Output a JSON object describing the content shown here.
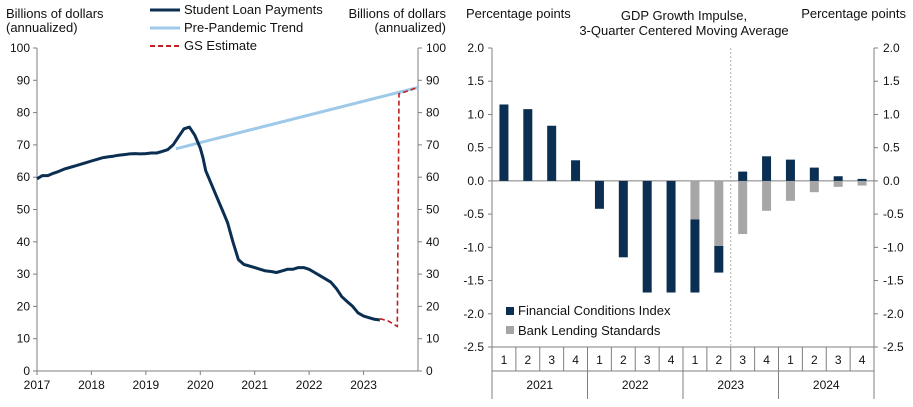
{
  "colors": {
    "navy": "#0b2f52",
    "light_blue": "#9fc9e8",
    "red_dash": "#c0201f",
    "gray": "#a6a6a6",
    "axis": "#7f7f7f",
    "divider": "#b0b0b0"
  },
  "chart_data": [
    {
      "type": "line",
      "left_axis_title": [
        "Billions of dollars",
        "(annualized)"
      ],
      "right_axis_title": [
        "Billions of dollars",
        "(annualized)"
      ],
      "ylim": [
        0,
        100
      ],
      "yticks": [
        0,
        10,
        20,
        30,
        40,
        50,
        60,
        70,
        80,
        90,
        100
      ],
      "xlim": [
        2017,
        2024
      ],
      "xticks": [
        2017,
        2018,
        2019,
        2020,
        2021,
        2022,
        2023
      ],
      "legend": [
        "Student Loan Payments",
        "Pre-Pandemic Trend",
        "GS Estimate"
      ],
      "legend_position": "top",
      "series": [
        {
          "name": "Student Loan Payments",
          "x": [
            2017.0,
            2017.1,
            2017.2,
            2017.3,
            2017.4,
            2017.5,
            2017.6,
            2017.7,
            2017.8,
            2017.9,
            2018.0,
            2018.1,
            2018.2,
            2018.3,
            2018.4,
            2018.5,
            2018.6,
            2018.7,
            2018.8,
            2018.9,
            2019.0,
            2019.1,
            2019.2,
            2019.3,
            2019.4,
            2019.5,
            2019.6,
            2019.7,
            2019.8,
            2019.9,
            2020.0,
            2020.05,
            2020.1,
            2020.2,
            2020.3,
            2020.4,
            2020.5,
            2020.6,
            2020.7,
            2020.8,
            2020.9,
            2021.0,
            2021.1,
            2021.2,
            2021.3,
            2021.4,
            2021.5,
            2021.6,
            2021.7,
            2021.8,
            2021.9,
            2022.0,
            2022.1,
            2022.2,
            2022.3,
            2022.4,
            2022.5,
            2022.6,
            2022.7,
            2022.8,
            2022.9,
            2023.0,
            2023.1,
            2023.2,
            2023.3
          ],
          "y": [
            59.5,
            60.5,
            60.5,
            61.2,
            61.8,
            62.5,
            63.0,
            63.5,
            64.0,
            64.5,
            65.0,
            65.5,
            66.0,
            66.3,
            66.5,
            66.8,
            67.0,
            67.2,
            67.3,
            67.2,
            67.3,
            67.5,
            67.5,
            68.0,
            68.5,
            70.0,
            72.5,
            75.0,
            75.5,
            73.0,
            69.0,
            66.0,
            62.0,
            58.0,
            54.0,
            50.0,
            46.0,
            40.0,
            34.5,
            33.0,
            32.5,
            32.0,
            31.5,
            31.0,
            30.8,
            30.5,
            31.0,
            31.5,
            31.5,
            32.0,
            32.0,
            31.5,
            30.5,
            29.5,
            28.5,
            27.5,
            25.5,
            23.0,
            21.5,
            20.0,
            18.0,
            17.0,
            16.5,
            16.0,
            15.8
          ]
        },
        {
          "name": "Pre-Pandemic Trend",
          "x": [
            2019.55,
            2024.0
          ],
          "y": [
            68.8,
            87.8
          ]
        },
        {
          "name": "GS Estimate",
          "x": [
            2023.3,
            2023.45,
            2023.62,
            2023.65,
            2024.0
          ],
          "y": [
            16.2,
            15.5,
            13.8,
            85.8,
            87.8
          ]
        }
      ]
    },
    {
      "type": "bar",
      "title": [
        "GDP Growth Impulse,",
        "3-Quarter Centered Moving Average"
      ],
      "left_axis_title": "Percentage points",
      "right_axis_title": "Percentage points",
      "ylim": [
        -2.5,
        2.0
      ],
      "yticks": [
        -2.5,
        -2.0,
        -1.5,
        -1.0,
        -0.5,
        0.0,
        0.5,
        1.0,
        1.5,
        2.0
      ],
      "ytick_labels": [
        "-2.5",
        "-2.0",
        "-1.5",
        "-1.0",
        "-0.5",
        "0.0",
        "0.5",
        "1.0",
        "1.5",
        "2.0"
      ],
      "categories": [
        "1",
        "2",
        "3",
        "4",
        "1",
        "2",
        "3",
        "4",
        "1",
        "2",
        "3",
        "4",
        "1",
        "2",
        "3",
        "4"
      ],
      "years": [
        "2021",
        "2022",
        "2023",
        "2024"
      ],
      "divider_after_category_index": 9,
      "legend_position": "bottom-left",
      "series": [
        {
          "name": "Financial Conditions Index",
          "values": [
            1.15,
            1.08,
            0.83,
            0.31,
            -0.42,
            -1.15,
            -1.68,
            -1.68,
            -1.68,
            -1.38,
            0.14,
            0.37,
            0.32,
            0.2,
            0.07,
            0.03
          ]
        },
        {
          "name": "Bank Lending Standards",
          "values": [
            0,
            0,
            0,
            0,
            0,
            0,
            0,
            0,
            -0.58,
            -0.98,
            -0.8,
            -0.45,
            -0.3,
            -0.17,
            -0.09,
            -0.07
          ]
        }
      ]
    }
  ]
}
